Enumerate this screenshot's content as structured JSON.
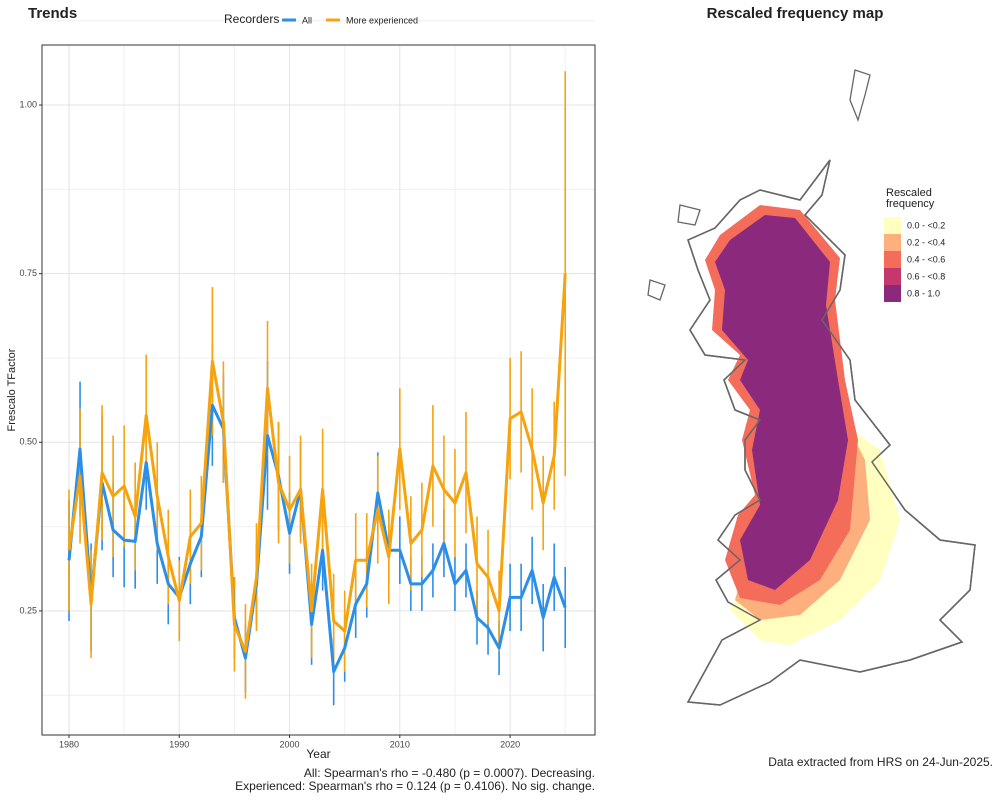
{
  "chart_data": [
    {
      "type": "line",
      "title": "Trends",
      "x_label": "Year",
      "y_label": "Frescalo TFactor",
      "legend_title": "Recorders",
      "grid": true,
      "x": [
        1980,
        1981,
        1982,
        1983,
        1984,
        1985,
        1986,
        1987,
        1988,
        1989,
        1990,
        1991,
        1992,
        1993,
        1994,
        1995,
        1996,
        1997,
        1998,
        1999,
        2000,
        2001,
        2002,
        2003,
        2004,
        2005,
        2006,
        2007,
        2008,
        2009,
        2010,
        2011,
        2012,
        2013,
        2014,
        2015,
        2016,
        2017,
        2018,
        2019,
        2020,
        2021,
        2022,
        2023,
        2024,
        2025
      ],
      "xlim": [
        1977.55,
        2027.7
      ],
      "xticks": [
        1980,
        1990,
        2000,
        2010,
        2020
      ],
      "ylim": [
        0.066,
        1.089
      ],
      "yticks": [
        {
          "value": 0.25,
          "label": "0.25"
        },
        {
          "value": 0.5,
          "label": "0.50"
        },
        {
          "value": 0.75,
          "label": "0.75"
        },
        {
          "value": 1.0,
          "label": "1.00"
        }
      ],
      "series": [
        {
          "name": "All",
          "color": "#2b8ee8",
          "values": [
            0.325,
            0.49,
            0.27,
            0.44,
            0.37,
            0.355,
            0.353,
            0.47,
            0.35,
            0.29,
            0.27,
            0.32,
            0.36,
            0.555,
            0.52,
            0.24,
            0.18,
            0.29,
            0.51,
            0.45,
            0.365,
            0.43,
            0.23,
            0.34,
            0.16,
            0.195,
            0.26,
            0.29,
            0.425,
            0.34,
            0.34,
            0.29,
            0.29,
            0.31,
            0.35,
            0.29,
            0.31,
            0.24,
            0.225,
            0.195,
            0.27,
            0.27,
            0.31,
            0.24,
            0.3,
            0.255
          ],
          "errors": [
            0.09,
            0.1,
            0.08,
            0.1,
            0.07,
            0.07,
            0.07,
            0.07,
            0.06,
            0.06,
            0.06,
            0.06,
            0.06,
            0.09,
            0.08,
            0.06,
            0.05,
            0.06,
            0.11,
            0.08,
            0.06,
            0.07,
            0.06,
            0.06,
            0.05,
            0.05,
            0.05,
            0.05,
            0.06,
            0.05,
            0.05,
            0.04,
            0.04,
            0.04,
            0.05,
            0.04,
            0.04,
            0.04,
            0.04,
            0.04,
            0.05,
            0.05,
            0.05,
            0.05,
            0.05,
            0.06
          ]
        },
        {
          "name": "More experienced",
          "color": "#f5a30f",
          "values": [
            0.34,
            0.45,
            0.26,
            0.455,
            0.42,
            0.435,
            0.39,
            0.54,
            0.42,
            0.33,
            0.265,
            0.36,
            0.38,
            0.62,
            0.53,
            0.23,
            0.19,
            0.3,
            0.58,
            0.44,
            0.4,
            0.43,
            0.25,
            0.43,
            0.235,
            0.22,
            0.325,
            0.325,
            0.4,
            0.33,
            0.49,
            0.35,
            0.37,
            0.465,
            0.43,
            0.41,
            0.455,
            0.32,
            0.3,
            0.25,
            0.535,
            0.545,
            0.49,
            0.41,
            0.48,
            0.75
          ],
          "errors": [
            0.09,
            0.1,
            0.08,
            0.1,
            0.09,
            0.09,
            0.08,
            0.09,
            0.08,
            0.07,
            0.06,
            0.07,
            0.07,
            0.11,
            0.09,
            0.07,
            0.07,
            0.08,
            0.1,
            0.09,
            0.08,
            0.08,
            0.07,
            0.09,
            0.07,
            0.06,
            0.07,
            0.07,
            0.08,
            0.07,
            0.09,
            0.07,
            0.07,
            0.09,
            0.08,
            0.08,
            0.09,
            0.07,
            0.07,
            0.06,
            0.09,
            0.09,
            0.09,
            0.07,
            0.08,
            0.3
          ]
        }
      ],
      "notes": [
        "All: Spearman's rho = -0.480 (p = 0.0007). Decreasing.",
        "Experienced: Spearman's rho = 0.124 (p = 0.4106). No sig. change."
      ]
    },
    {
      "type": "map",
      "title": "Rescaled frequency map",
      "legend_title": [
        "Rescaled",
        "frequency"
      ],
      "legend": [
        {
          "label": "0.0 - <0.2",
          "color": "#ffffbf"
        },
        {
          "label": "0.2 - <0.4",
          "color": "#fdb07d"
        },
        {
          "label": "0.4 - <0.6",
          "color": "#f46d5b"
        },
        {
          "label": "0.6 - <0.8",
          "color": "#c4386e"
        },
        {
          "label": "0.8 - 1.0",
          "color": "#8b2a7d"
        }
      ],
      "caption": "Data extracted from HRS on 24-Jun-2025."
    }
  ]
}
